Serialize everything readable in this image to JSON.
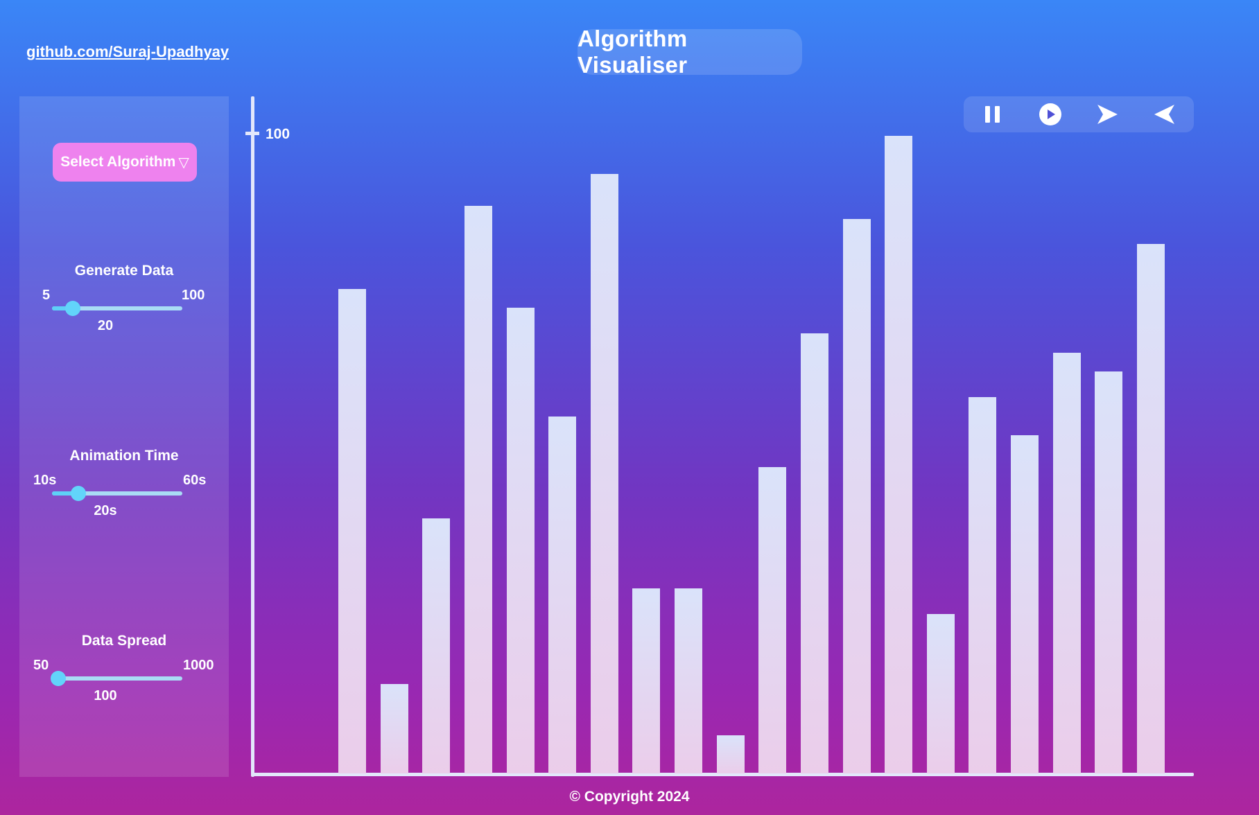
{
  "header": {
    "github_link": "github.com/Suraj-Upadhyay",
    "title": "Algorithm Visualiser"
  },
  "sidebar": {
    "select_algorithm_label": "Select Algorithm",
    "sliders": [
      {
        "label": "Generate Data",
        "min": "5",
        "max": "100",
        "value": "20",
        "level": 0.16
      },
      {
        "label": "Animation Time",
        "min": "10s",
        "max": "60s",
        "value": "20s",
        "level": 0.2
      },
      {
        "label": "Data Spread",
        "min": "50",
        "max": "1000",
        "value": "100",
        "level": 0.05
      }
    ]
  },
  "controls": {
    "icons": [
      "pause-icon",
      "play-circle-icon",
      "step-forward-icon",
      "step-back-icon"
    ]
  },
  "chart_data": {
    "type": "bar",
    "y_tick_label": "100",
    "ylim": [
      0,
      100
    ],
    "values": [
      76,
      14,
      40,
      89,
      73,
      56,
      94,
      29,
      29,
      6,
      48,
      69,
      87,
      100,
      25,
      59,
      53,
      66,
      63,
      83
    ]
  },
  "colors": {
    "accent_button": "#ee82ee",
    "slider": "#5ed0f7",
    "bar_top": "#dae3fa",
    "bar_bottom": "#ebcdea"
  },
  "footer": {
    "copyright": "© Copyright 2024"
  }
}
